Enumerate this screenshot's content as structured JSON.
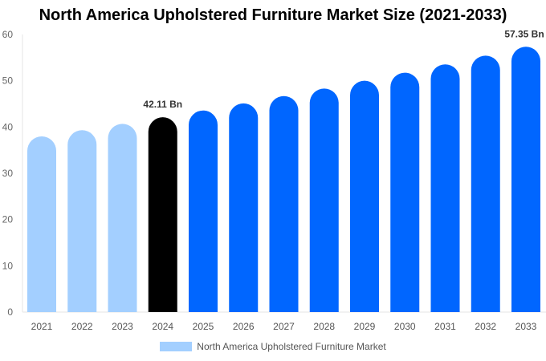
{
  "chart_data": {
    "type": "bar",
    "title": "North America Upholstered Furniture Market Size (2021-2033)",
    "categories": [
      "2021",
      "2022",
      "2023",
      "2024",
      "2025",
      "2026",
      "2027",
      "2028",
      "2029",
      "2030",
      "2031",
      "2032",
      "2033"
    ],
    "series": [
      {
        "name": "North America Upholstered Furniture Market",
        "values": [
          37.98,
          39.31,
          40.69,
          42.11,
          43.58,
          45.1,
          46.68,
          48.31,
          50.0,
          51.74,
          53.55,
          55.42,
          57.35
        ]
      }
    ],
    "data_labels": {
      "2024": "42.11 Bn",
      "2033": "57.35 Bn"
    },
    "ylim": [
      0,
      60
    ],
    "yticks": [
      0,
      10,
      20,
      30,
      40,
      50,
      60
    ],
    "xlabel": "",
    "ylabel": "",
    "grid": false,
    "legend": "bottom",
    "colors": {
      "historical": "#a3cfff",
      "base_year": "#000000",
      "forecast": "#0066ff"
    }
  }
}
